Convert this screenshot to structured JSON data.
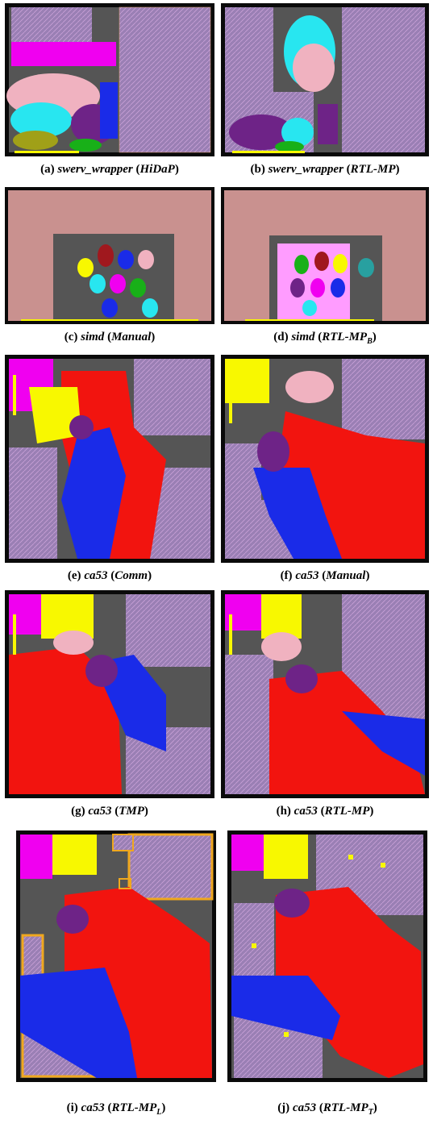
{
  "colors": {
    "macro": "#9a7fb4",
    "macro_stripe": "#c9a1d8",
    "macro_outline": "#e0a36a",
    "simd_macro": "#c9918f",
    "background_die": "#555555",
    "frame": "#0a0a0a",
    "red": "#f2140f",
    "blue": "#1a2be8",
    "yellow": "#f8f800",
    "magenta": "#f000f0",
    "pink": "#f0b2c0",
    "cyan": "#28e6f0",
    "purple": "#6e2387",
    "olive": "#a0a018",
    "green": "#18b018",
    "orange_highlight": "#f0a81e"
  },
  "figures": [
    {
      "label": "(a)",
      "design": "swerv_wrapper",
      "method": "HiDaP",
      "sub": ""
    },
    {
      "label": "(b)",
      "design": "swerv_wrapper",
      "method": "RTL-MP",
      "sub": ""
    },
    {
      "label": "(c)",
      "design": "simd",
      "method": "Manual",
      "sub": ""
    },
    {
      "label": "(d)",
      "design": "simd",
      "method": "RTL-MP",
      "sub": "B"
    },
    {
      "label": "(e)",
      "design": "ca53",
      "method": "Comm",
      "sub": ""
    },
    {
      "label": "(f)",
      "design": "ca53",
      "method": "Manual",
      "sub": ""
    },
    {
      "label": "(g)",
      "design": "ca53",
      "method": "TMP",
      "sub": ""
    },
    {
      "label": "(h)",
      "design": "ca53",
      "method": "RTL-MP",
      "sub": ""
    },
    {
      "label": "(i)",
      "design": "ca53",
      "method": "RTL-MP",
      "sub": "L"
    },
    {
      "label": "(j)",
      "design": "ca53",
      "method": "RTL-MP",
      "sub": "T"
    }
  ]
}
